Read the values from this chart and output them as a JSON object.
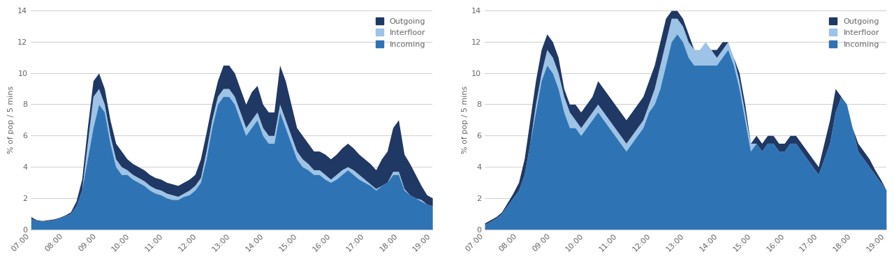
{
  "ylabel": "% of pop / 5 mins",
  "ylim": [
    0,
    14
  ],
  "yticks": [
    0,
    2,
    4,
    6,
    8,
    10,
    12,
    14
  ],
  "xtick_labels": [
    "07:00",
    "08:00",
    "09:00",
    "10:00",
    "11:00",
    "12:00",
    "13:00",
    "14:00",
    "15:00",
    "16:00",
    "17:00",
    "18:00",
    "19:00"
  ],
  "color_outgoing": "#1f3864",
  "color_interfloor": "#9dc3e6",
  "color_incoming": "#2e74b5",
  "background_color": "#ffffff",
  "grid_color": "#c8c8c8",
  "chart1": {
    "incoming": [
      0.7,
      0.55,
      0.5,
      0.55,
      0.6,
      0.7,
      0.85,
      1.0,
      1.5,
      2.5,
      4.5,
      6.5,
      8.0,
      7.5,
      5.5,
      4.0,
      3.5,
      3.5,
      3.2,
      3.0,
      2.8,
      2.5,
      2.3,
      2.2,
      2.0,
      1.9,
      1.9,
      2.1,
      2.2,
      2.5,
      3.0,
      4.5,
      6.5,
      8.0,
      8.5,
      8.5,
      8.0,
      7.0,
      6.0,
      6.5,
      7.0,
      6.0,
      5.5,
      5.5,
      7.5,
      6.5,
      5.5,
      4.5,
      4.0,
      3.8,
      3.5,
      3.5,
      3.2,
      3.0,
      3.2,
      3.5,
      3.8,
      3.5,
      3.2,
      3.0,
      2.8,
      2.5,
      2.8,
      3.0,
      3.5,
      3.5,
      2.5,
      2.2,
      2.0,
      1.8,
      1.6,
      1.5
    ],
    "interfloor": [
      0.7,
      0.55,
      0.5,
      0.55,
      0.6,
      0.7,
      0.85,
      1.0,
      1.5,
      2.5,
      5.5,
      8.5,
      9.0,
      8.0,
      6.0,
      4.5,
      4.0,
      3.8,
      3.5,
      3.3,
      3.1,
      2.8,
      2.6,
      2.5,
      2.3,
      2.2,
      2.1,
      2.3,
      2.5,
      2.8,
      3.3,
      5.0,
      7.0,
      8.5,
      9.0,
      9.0,
      8.5,
      7.5,
      6.5,
      7.0,
      7.5,
      6.5,
      6.0,
      6.0,
      8.0,
      7.0,
      6.0,
      5.0,
      4.5,
      4.2,
      3.8,
      3.8,
      3.5,
      3.2,
      3.5,
      3.8,
      4.0,
      3.8,
      3.5,
      3.2,
      2.9,
      2.6,
      2.8,
      3.0,
      3.7,
      3.7,
      2.6,
      2.2,
      2.0,
      1.9,
      1.6,
      1.5
    ],
    "outgoing": [
      0.8,
      0.6,
      0.55,
      0.6,
      0.65,
      0.75,
      0.9,
      1.1,
      1.8,
      3.2,
      6.5,
      9.5,
      10.0,
      9.0,
      7.0,
      5.5,
      5.0,
      4.5,
      4.2,
      4.0,
      3.8,
      3.5,
      3.3,
      3.2,
      3.0,
      2.9,
      2.8,
      3.0,
      3.2,
      3.5,
      4.5,
      6.2,
      8.0,
      9.5,
      10.5,
      10.5,
      10.0,
      9.0,
      8.0,
      8.8,
      9.2,
      8.0,
      7.5,
      7.5,
      10.5,
      9.5,
      8.0,
      6.5,
      6.0,
      5.5,
      5.0,
      5.0,
      4.8,
      4.5,
      4.8,
      5.2,
      5.5,
      5.2,
      4.8,
      4.5,
      4.2,
      3.8,
      4.5,
      5.0,
      6.5,
      7.0,
      4.8,
      4.2,
      3.5,
      2.8,
      2.2,
      2.0
    ]
  },
  "chart2": {
    "incoming": [
      0.3,
      0.5,
      0.7,
      1.0,
      1.5,
      2.0,
      2.5,
      3.5,
      5.5,
      7.5,
      9.5,
      10.5,
      10.0,
      9.0,
      7.5,
      6.5,
      6.5,
      6.0,
      6.5,
      7.0,
      7.5,
      7.0,
      6.5,
      6.0,
      5.5,
      5.0,
      5.5,
      6.0,
      6.5,
      7.5,
      8.0,
      9.0,
      10.5,
      12.0,
      12.5,
      12.0,
      11.0,
      10.5,
      10.5,
      10.5,
      10.5,
      10.5,
      11.0,
      11.5,
      10.5,
      9.0,
      7.0,
      5.0,
      5.5,
      5.0,
      5.5,
      5.5,
      5.0,
      5.0,
      5.5,
      5.5,
      5.0,
      4.5,
      4.0,
      3.5,
      4.5,
      5.5,
      7.5,
      8.5,
      8.0,
      6.5,
      5.0,
      4.5,
      4.0,
      3.5,
      3.0,
      2.5
    ],
    "interfloor": [
      0.3,
      0.5,
      0.7,
      1.0,
      1.5,
      2.0,
      2.5,
      3.5,
      5.5,
      8.0,
      10.0,
      11.5,
      11.0,
      10.0,
      8.5,
      7.5,
      7.0,
      6.5,
      7.0,
      7.5,
      8.0,
      7.5,
      7.0,
      6.5,
      6.0,
      5.5,
      6.0,
      6.5,
      7.0,
      8.0,
      9.0,
      10.5,
      12.0,
      13.5,
      13.5,
      13.0,
      12.0,
      11.5,
      11.5,
      12.0,
      11.5,
      11.0,
      11.5,
      12.0,
      11.0,
      10.0,
      8.0,
      5.5,
      5.5,
      5.0,
      5.5,
      5.5,
      5.0,
      5.0,
      5.5,
      5.5,
      5.0,
      4.5,
      4.0,
      3.5,
      4.5,
      5.5,
      7.5,
      8.5,
      8.0,
      6.5,
      5.0,
      4.5,
      4.0,
      3.5,
      3.0,
      2.5
    ],
    "outgoing": [
      0.4,
      0.6,
      0.8,
      1.1,
      1.7,
      2.3,
      3.0,
      4.5,
      7.0,
      9.5,
      11.5,
      12.5,
      12.0,
      11.0,
      9.0,
      8.0,
      8.0,
      7.5,
      8.0,
      8.5,
      9.5,
      9.0,
      8.5,
      8.0,
      7.5,
      7.0,
      7.5,
      8.0,
      8.5,
      9.5,
      10.5,
      12.0,
      13.5,
      14.0,
      14.0,
      13.5,
      12.5,
      11.5,
      11.5,
      12.0,
      11.5,
      11.5,
      12.0,
      12.0,
      11.0,
      9.5,
      7.5,
      5.5,
      6.0,
      5.5,
      6.0,
      6.0,
      5.5,
      5.5,
      6.0,
      6.0,
      5.5,
      5.0,
      4.5,
      4.0,
      5.5,
      7.0,
      9.0,
      8.5,
      8.0,
      6.5,
      5.5,
      5.0,
      4.5,
      3.8,
      3.2,
      2.5
    ]
  }
}
